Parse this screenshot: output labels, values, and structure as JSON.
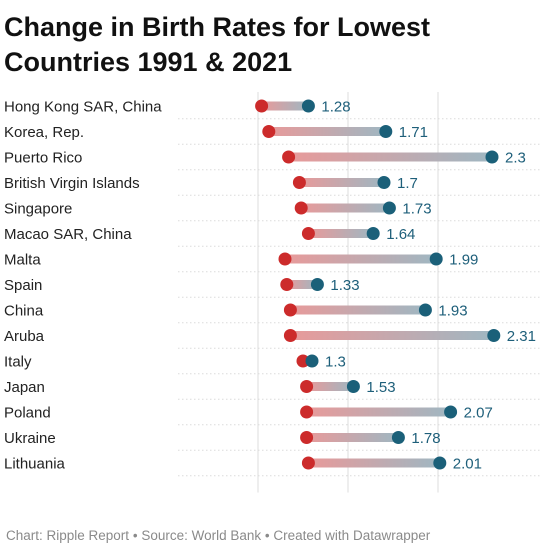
{
  "title": "Change in Birth Rates for Lowest Countries 1991 &  2021",
  "footer": {
    "chart": "Chart: Ripple Report",
    "source": "Source: World Bank",
    "created": "Created with Datawrapper",
    "separator": "•"
  },
  "colors": {
    "start_dot": "#cc2b2b",
    "end_dot": "#1b6079",
    "start_bar": "#e89a9a",
    "end_bar": "#9fb7c2",
    "grid": "#dddddd",
    "row_rule": "#dcdcdc"
  },
  "chart_data": {
    "type": "dot-range",
    "xticks": [
      1,
      1.5,
      2
    ],
    "xlim": [
      0.72,
      2.35
    ],
    "grid": true,
    "legend": "none",
    "categories": [
      "Hong Kong SAR, China",
      "Korea, Rep.",
      "Puerto Rico",
      "British Virgin Islands",
      "Singapore",
      "Macao SAR, China",
      "Malta",
      "Spain",
      "China",
      "Aruba",
      "Italy",
      "Japan",
      "Poland",
      "Ukraine",
      "Lithuania"
    ],
    "series": [
      {
        "name": "1991",
        "values": [
          1.02,
          1.06,
          1.17,
          1.23,
          1.24,
          1.28,
          1.15,
          1.16,
          1.18,
          1.18,
          1.25,
          1.27,
          1.27,
          1.27,
          1.28
        ]
      },
      {
        "name": "2021",
        "values": [
          1.28,
          1.71,
          2.3,
          1.7,
          1.73,
          1.64,
          1.99,
          1.33,
          1.93,
          2.31,
          1.3,
          1.53,
          2.07,
          1.78,
          2.01
        ]
      }
    ],
    "value_labels": [
      "1.28",
      "1.71",
      "2.3",
      "1.7",
      "1.73",
      "1.64",
      "1.99",
      "1.33",
      "1.93",
      "2.31",
      "1.3",
      "1.53",
      "2.07",
      "1.78",
      "2.01"
    ]
  }
}
